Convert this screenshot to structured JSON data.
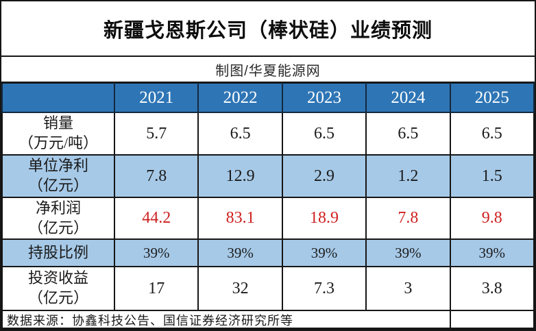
{
  "title": "新疆戈恩斯公司（棒状硅）业绩预测",
  "subtitle": "制图/华夏能源网",
  "colors": {
    "header_blue": "#2E75B5",
    "shaded_row_blue": "#A6C9E7",
    "net_profit_red": "#CE1F1F",
    "border_black": "#161616"
  },
  "chart_data": {
    "type": "table",
    "title": "新疆戈恩斯公司（棒状硅）业绩预测",
    "subtitle": "制图/华夏能源网",
    "columns": [
      "",
      "2021",
      "2022",
      "2023",
      "2024",
      "2025"
    ],
    "rows": [
      {
        "label": "销量（万元/吨）",
        "values": [
          5.7,
          6.5,
          6.5,
          6.5,
          6.5
        ]
      },
      {
        "label": "单位净利（亿元）",
        "values": [
          7.8,
          12.9,
          2.9,
          1.2,
          1.5
        ]
      },
      {
        "label": "净利润（亿元）",
        "values": [
          44.2,
          83.1,
          18.9,
          7.8,
          9.8
        ]
      },
      {
        "label": "持股比例",
        "values": [
          "39%",
          "39%",
          "39%",
          "39%",
          "39%"
        ]
      },
      {
        "label": "投资收益（亿元）",
        "values": [
          17,
          32,
          7.3,
          3,
          3.8
        ]
      }
    ],
    "footnote": "数据来源：协鑫科技公告、国信证券经济研究所等"
  },
  "table": {
    "corner_label": "",
    "years": [
      "2021",
      "2022",
      "2023",
      "2024",
      "2025"
    ],
    "rows": [
      {
        "label_lines": [
          "销量",
          "（万元/吨）"
        ],
        "values": [
          "5.7",
          "6.5",
          "6.5",
          "6.5",
          "6.5"
        ],
        "shaded": false,
        "value_color": "black"
      },
      {
        "label_lines": [
          "单位净利",
          "（亿元）"
        ],
        "values": [
          "7.8",
          "12.9",
          "2.9",
          "1.2",
          "1.5"
        ],
        "shaded": true,
        "value_color": "black"
      },
      {
        "label_lines": [
          "净利润",
          "（亿元）"
        ],
        "values": [
          "44.2",
          "83.1",
          "18.9",
          "7.8",
          "9.8"
        ],
        "shaded": false,
        "value_color": "red"
      },
      {
        "label_lines": [
          "持股比例"
        ],
        "values": [
          "39%",
          "39%",
          "39%",
          "39%",
          "39%"
        ],
        "shaded": true,
        "value_color": "black"
      },
      {
        "label_lines": [
          "投资收益",
          "（亿元）"
        ],
        "values": [
          "17",
          "32",
          "7.3",
          "3",
          "3.8"
        ],
        "shaded": false,
        "value_color": "black"
      }
    ],
    "footer": "数据来源：协鑫科技公告、国信证券经济研究所等"
  }
}
